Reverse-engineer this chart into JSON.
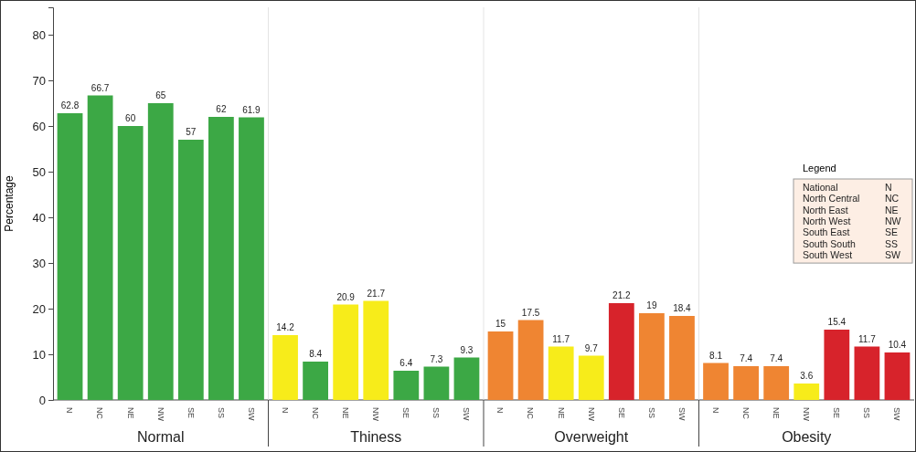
{
  "chart_data": [
    {
      "type": "bar",
      "xlabel": "Normal",
      "ylabel": "Percentage",
      "categories": [
        "N",
        "NC",
        "NE",
        "NW",
        "SE",
        "SS",
        "SW"
      ],
      "values": [
        62.8,
        66.7,
        60,
        65,
        57,
        62,
        61.9
      ],
      "colors": [
        "#3ca845",
        "#3ca845",
        "#3ca845",
        "#3ca845",
        "#3ca845",
        "#3ca845",
        "#3ca845"
      ],
      "ylim": [
        0,
        86
      ],
      "yticks": [
        0,
        10,
        20,
        30,
        40,
        50,
        60,
        70,
        80
      ],
      "data_labels": true
    },
    {
      "type": "bar",
      "xlabel": "Thiness",
      "categories": [
        "N",
        "NC",
        "NE",
        "NW",
        "SE",
        "SS",
        "SW"
      ],
      "values": [
        14.2,
        8.4,
        20.9,
        21.7,
        6.4,
        7.3,
        9.3
      ],
      "colors": [
        "#f7ec1a",
        "#3ca845",
        "#f7ec1a",
        "#f7ec1a",
        "#3ca845",
        "#3ca845",
        "#3ca845"
      ],
      "ylim": [
        0,
        86
      ],
      "yticks": [
        0,
        10,
        20,
        30,
        40,
        50,
        60,
        70,
        80
      ],
      "tick_labels": "x",
      "data_labels": true
    },
    {
      "type": "bar",
      "xlabel": "Overweight",
      "categories": [
        "N",
        "NC",
        "NE",
        "NW",
        "SE",
        "SS",
        "SW"
      ],
      "values": [
        15,
        17.5,
        11.7,
        9.7,
        21.2,
        19,
        18.4
      ],
      "colors": [
        "#ef8532",
        "#ef8532",
        "#f7ec1a",
        "#f7ec1a",
        "#d7232b",
        "#ef8532",
        "#ef8532"
      ],
      "ylim": [
        0,
        86
      ],
      "yticks": [
        0,
        10,
        20,
        30,
        40,
        50,
        60,
        70,
        80
      ],
      "tick_labels": "x",
      "data_labels": true
    },
    {
      "type": "bar",
      "xlabel": "Obesity",
      "categories": [
        "N",
        "NC",
        "NE",
        "NW",
        "SE",
        "SS",
        "SW"
      ],
      "values": [
        8.1,
        7.4,
        7.4,
        3.6,
        15.4,
        11.7,
        10.4
      ],
      "colors": [
        "#ef8532",
        "#ef8532",
        "#ef8532",
        "#f7ec1a",
        "#d7232b",
        "#d7232b",
        "#d7232b"
      ],
      "ylim": [
        0,
        86
      ],
      "yticks": [
        0,
        10,
        20,
        30,
        40,
        50,
        60,
        70,
        80
      ],
      "tick_labels": "x",
      "data_labels": true,
      "legend_title": "Legend",
      "annotations": [
        "National",
        "N",
        "North Central",
        "NC",
        "North East",
        "NE",
        "North West",
        "NW",
        "South East",
        "SE",
        "South South",
        "SS",
        "South West",
        "SW"
      ]
    }
  ]
}
